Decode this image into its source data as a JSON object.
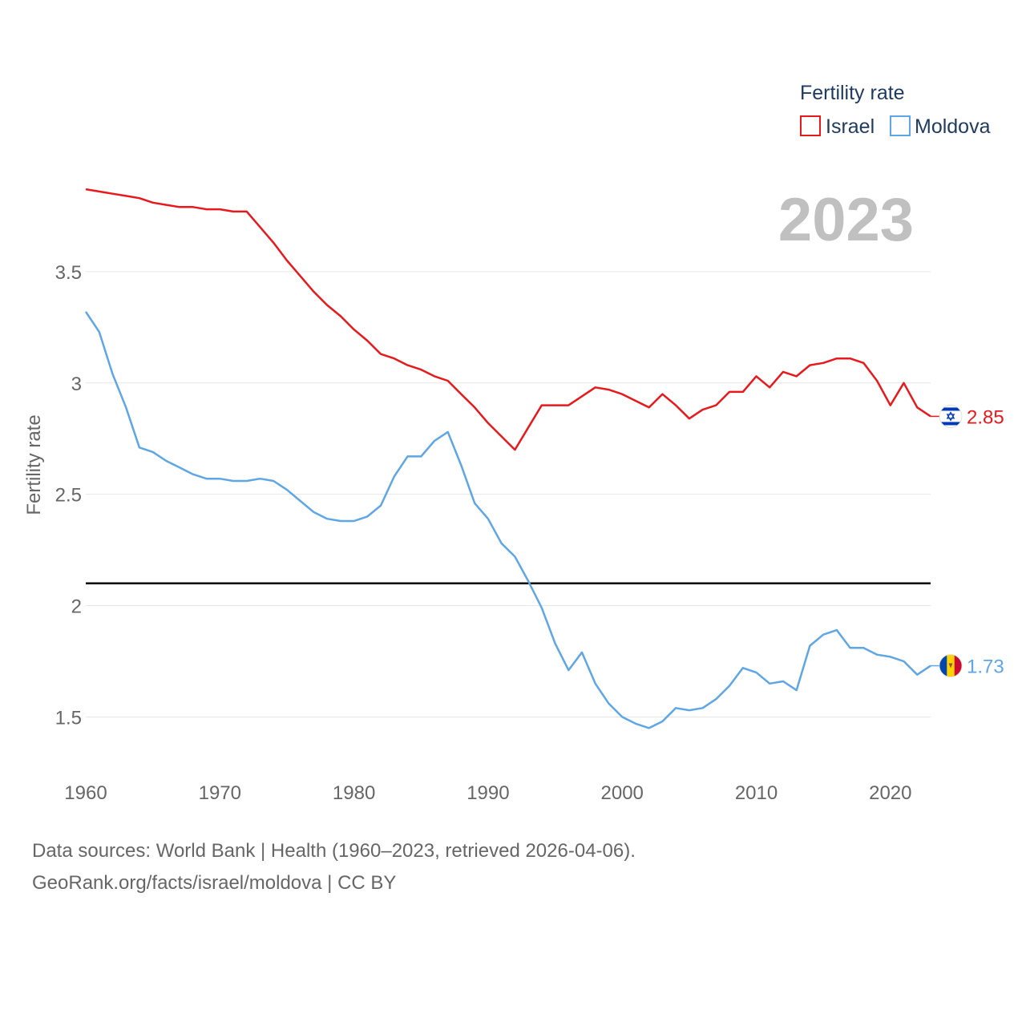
{
  "chart_data": {
    "type": "line",
    "title": "",
    "year_label": "2023",
    "xlabel": "",
    "ylabel": "Fertility rate",
    "xlim": [
      1960,
      2023
    ],
    "ylim": [
      1.3,
      4.0
    ],
    "x_ticks": [
      1960,
      1970,
      1980,
      1990,
      2000,
      2010,
      2020
    ],
    "x_tick_labels": [
      "1960",
      "1970",
      "1980",
      "1990",
      "2000",
      "2010",
      "2020"
    ],
    "y_ticks": [
      1.5,
      2,
      2.5,
      3,
      3.5
    ],
    "y_tick_labels": [
      "1.5",
      "2",
      "2.5",
      "3",
      "3.5"
    ],
    "grid": true,
    "legend": {
      "title": "Fertility rate",
      "position": "top-right"
    },
    "reference_line": {
      "y": 2.1,
      "color": "#000000"
    },
    "x": [
      1960,
      1961,
      1962,
      1963,
      1964,
      1965,
      1966,
      1967,
      1968,
      1969,
      1970,
      1971,
      1972,
      1973,
      1974,
      1975,
      1976,
      1977,
      1978,
      1979,
      1980,
      1981,
      1982,
      1983,
      1984,
      1985,
      1986,
      1987,
      1988,
      1989,
      1990,
      1991,
      1992,
      1993,
      1994,
      1995,
      1996,
      1997,
      1998,
      1999,
      2000,
      2001,
      2002,
      2003,
      2004,
      2005,
      2006,
      2007,
      2008,
      2009,
      2010,
      2011,
      2012,
      2013,
      2014,
      2015,
      2016,
      2017,
      2018,
      2019,
      2020,
      2021,
      2022,
      2023
    ],
    "series": [
      {
        "name": "Israel",
        "color": "#e8191c",
        "end_label": "2.85",
        "flag": "israel-flag-icon",
        "values": [
          3.87,
          3.86,
          3.85,
          3.84,
          3.83,
          3.81,
          3.8,
          3.79,
          3.79,
          3.78,
          3.78,
          3.77,
          3.77,
          3.7,
          3.63,
          3.55,
          3.48,
          3.41,
          3.35,
          3.3,
          3.24,
          3.19,
          3.13,
          3.11,
          3.08,
          3.06,
          3.03,
          3.01,
          2.95,
          2.89,
          2.82,
          2.76,
          2.7,
          2.8,
          2.9,
          2.9,
          2.9,
          2.94,
          2.98,
          2.97,
          2.95,
          2.92,
          2.89,
          2.95,
          2.9,
          2.84,
          2.88,
          2.9,
          2.96,
          2.96,
          3.03,
          2.98,
          3.05,
          3.03,
          3.08,
          3.09,
          3.11,
          3.11,
          3.09,
          3.01,
          2.9,
          3.0,
          2.89,
          2.85
        ]
      },
      {
        "name": "Moldova",
        "color": "#5ea6e6",
        "end_label": "1.73",
        "flag": "moldova-flag-icon",
        "values": [
          3.32,
          3.23,
          3.04,
          2.89,
          2.71,
          2.69,
          2.65,
          2.62,
          2.59,
          2.57,
          2.57,
          2.56,
          2.56,
          2.57,
          2.56,
          2.52,
          2.47,
          2.42,
          2.39,
          2.38,
          2.38,
          2.4,
          2.45,
          2.58,
          2.67,
          2.67,
          2.74,
          2.78,
          2.63,
          2.46,
          2.39,
          2.28,
          2.22,
          2.11,
          1.99,
          1.83,
          1.71,
          1.79,
          1.65,
          1.56,
          1.5,
          1.47,
          1.45,
          1.48,
          1.54,
          1.53,
          1.54,
          1.58,
          1.64,
          1.72,
          1.7,
          1.65,
          1.66,
          1.62,
          1.82,
          1.87,
          1.89,
          1.81,
          1.81,
          1.78,
          1.77,
          1.75,
          1.69,
          1.73
        ]
      }
    ]
  },
  "footer": {
    "source_line1": "Data sources: World Bank | Health (1960–2023, retrieved 2026-04-06).",
    "source_line2": "GeoRank.org/facts/israel/moldova | CC BY"
  }
}
